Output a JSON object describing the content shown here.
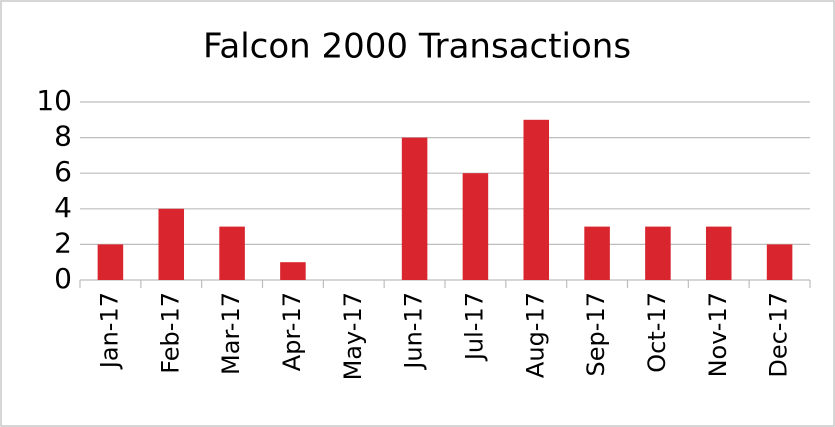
{
  "chart_data": {
    "type": "bar",
    "title": "Falcon 2000 Transactions",
    "categories": [
      "Jan-17",
      "Feb-17",
      "Mar-17",
      "Apr-17",
      "May-17",
      "Jun-17",
      "Jul-17",
      "Aug-17",
      "Sep-17",
      "Oct-17",
      "Nov-17",
      "Dec-17"
    ],
    "values": [
      2,
      4,
      3,
      1,
      0,
      8,
      6,
      9,
      3,
      3,
      3,
      2
    ],
    "color": "#d9262e",
    "ylim": [
      0,
      10
    ],
    "yticks": [
      0,
      2,
      4,
      6,
      8,
      10
    ],
    "grid": true
  }
}
